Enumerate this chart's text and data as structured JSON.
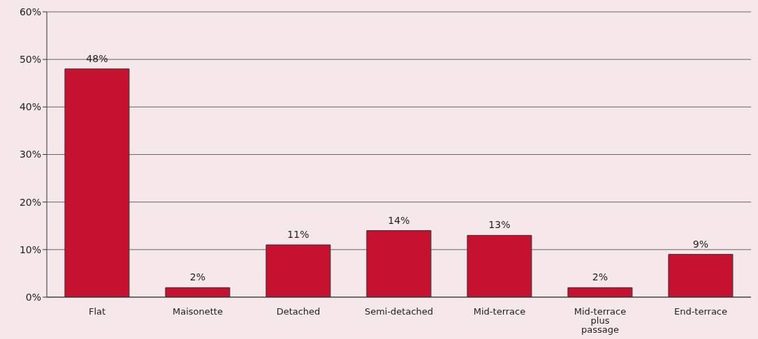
{
  "chart_data": {
    "type": "bar",
    "categories": [
      "Flat",
      "Maisonette",
      "Detached",
      "Semi-detached",
      "Mid-terrace",
      "Mid-terrace plus passage",
      "End-terrace"
    ],
    "values": [
      48,
      2,
      11,
      14,
      13,
      2,
      9
    ],
    "value_labels": [
      "48%",
      "2%",
      "11%",
      "14%",
      "13%",
      "2%",
      "9%"
    ],
    "color": "#c41230",
    "ylim": [
      0,
      60
    ],
    "yticks": [
      {
        "value": 0,
        "label": "0%"
      },
      {
        "value": 10,
        "label": "10%"
      },
      {
        "value": 20,
        "label": "20%"
      },
      {
        "value": 30,
        "label": "30%"
      },
      {
        "value": 40,
        "label": "40%"
      },
      {
        "value": 50,
        "label": "50%"
      },
      {
        "value": 60,
        "label": "60%"
      }
    ],
    "grid": "y"
  }
}
